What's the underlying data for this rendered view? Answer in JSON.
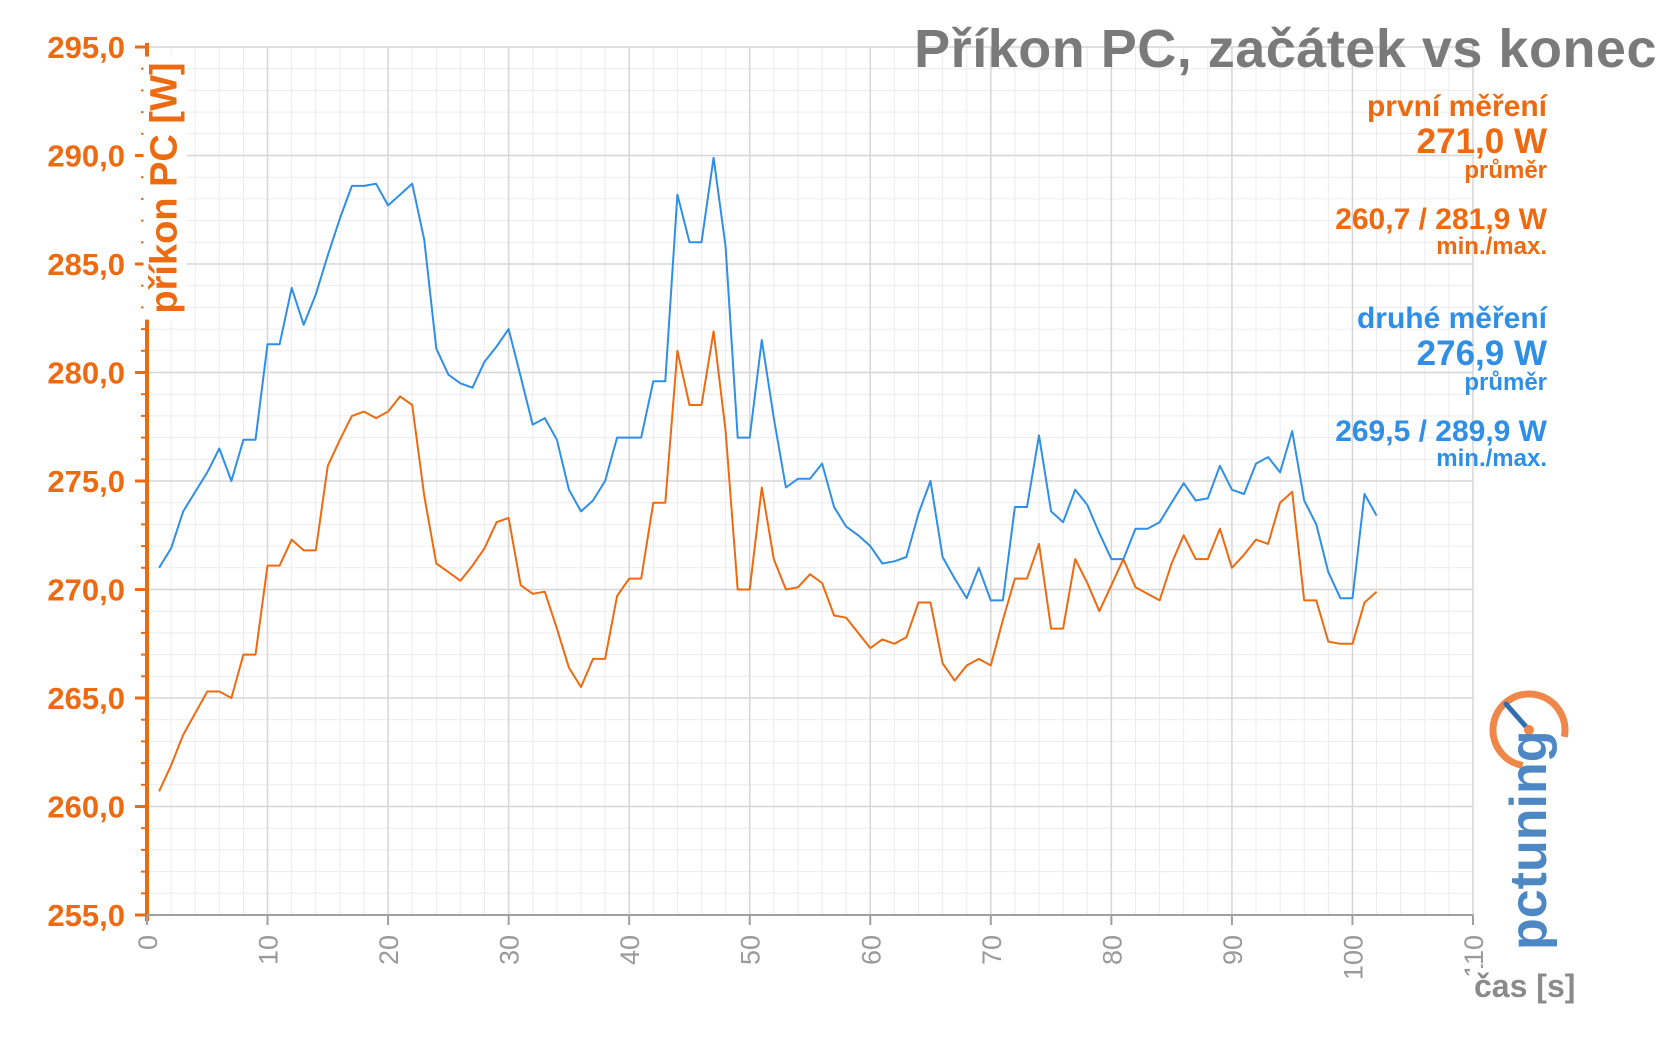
{
  "title": "Příkon PC, začátek vs konec",
  "legend": {
    "first": {
      "name": "první měření",
      "avg_value": "271,0 W",
      "avg_label": "průměr",
      "minmax_value": "260,7 / 281,9 W",
      "minmax_label": "min./max.",
      "color": "#ee6a10"
    },
    "second": {
      "name": "druhé měření",
      "avg_value": "276,9 W",
      "avg_label": "průměr",
      "minmax_value": "269,5 / 289,9 W",
      "minmax_label": "min./max.",
      "color": "#2f8fe6"
    }
  },
  "logo_text": "pctuning",
  "chart_data": {
    "type": "line",
    "title": "Příkon PC, začátek vs konec",
    "xlabel": "čas [s]",
    "ylabel": "příkon PC [W]",
    "xlim": [
      0,
      110
    ],
    "ylim": [
      255,
      295
    ],
    "x_ticks": [
      "0",
      "10",
      "20",
      "30",
      "40",
      "50",
      "60",
      "70",
      "80",
      "90",
      "100",
      "110"
    ],
    "y_ticks": [
      "255,0",
      "260,0",
      "265,0",
      "270,0",
      "275,0",
      "280,0",
      "285,0",
      "290,0",
      "295,0"
    ],
    "grid": true,
    "x_start": 1,
    "series": [
      {
        "name": "první měření",
        "color": "#ee6a10",
        "values": [
          260.7,
          261.9,
          263.3,
          264.3,
          265.3,
          265.3,
          265.0,
          267.0,
          267.0,
          271.1,
          271.1,
          272.3,
          271.8,
          271.8,
          275.7,
          276.9,
          278.0,
          278.2,
          277.9,
          278.2,
          278.9,
          278.5,
          274.3,
          271.2,
          270.8,
          270.4,
          271.1,
          271.9,
          273.1,
          273.3,
          270.2,
          269.8,
          269.9,
          268.2,
          266.4,
          265.5,
          266.8,
          266.8,
          269.7,
          270.5,
          270.5,
          274.0,
          274.0,
          281.0,
          278.5,
          278.5,
          281.9,
          277.3,
          270.0,
          270.0,
          274.7,
          271.4,
          270.0,
          270.1,
          270.7,
          270.3,
          268.8,
          268.7,
          268.0,
          267.3,
          267.7,
          267.5,
          267.8,
          269.4,
          269.4,
          266.6,
          265.8,
          266.5,
          266.8,
          266.5,
          268.6,
          270.5,
          270.5,
          272.1,
          268.2,
          268.2,
          271.4,
          270.3,
          269.0,
          270.2,
          271.4,
          270.1,
          269.8,
          269.5,
          271.2,
          272.5,
          271.4,
          271.4,
          272.8,
          271.0,
          271.6,
          272.3,
          272.1,
          274.0,
          274.5,
          269.5,
          269.5,
          267.6,
          267.5,
          267.5,
          269.4,
          269.9
        ]
      },
      {
        "name": "druhé měření",
        "color": "#2f8fe6",
        "values": [
          271.0,
          271.9,
          273.6,
          274.5,
          275.4,
          276.5,
          275.0,
          276.9,
          276.9,
          281.3,
          281.3,
          283.9,
          282.2,
          283.6,
          285.4,
          287.1,
          288.6,
          288.6,
          288.7,
          287.7,
          288.2,
          288.7,
          286.1,
          281.1,
          279.9,
          279.5,
          279.3,
          280.5,
          281.2,
          282.0,
          279.8,
          277.6,
          277.9,
          276.9,
          274.6,
          273.6,
          274.1,
          275.0,
          277.0,
          277.0,
          277.0,
          279.6,
          279.6,
          288.2,
          286.0,
          286.0,
          289.9,
          285.8,
          277.0,
          277.0,
          281.5,
          277.9,
          274.7,
          275.1,
          275.1,
          275.8,
          273.8,
          272.9,
          272.5,
          272.0,
          271.2,
          271.3,
          271.5,
          273.5,
          275.0,
          271.5,
          270.5,
          269.6,
          271.0,
          269.5,
          269.5,
          273.8,
          273.8,
          277.1,
          273.6,
          273.1,
          274.6,
          273.9,
          272.6,
          271.4,
          271.4,
          272.8,
          272.8,
          273.1,
          274.0,
          274.9,
          274.1,
          274.2,
          275.7,
          274.6,
          274.4,
          275.8,
          276.1,
          275.4,
          277.3,
          274.1,
          273.0,
          270.8,
          269.6,
          269.6,
          274.4,
          273.4
        ]
      }
    ]
  }
}
